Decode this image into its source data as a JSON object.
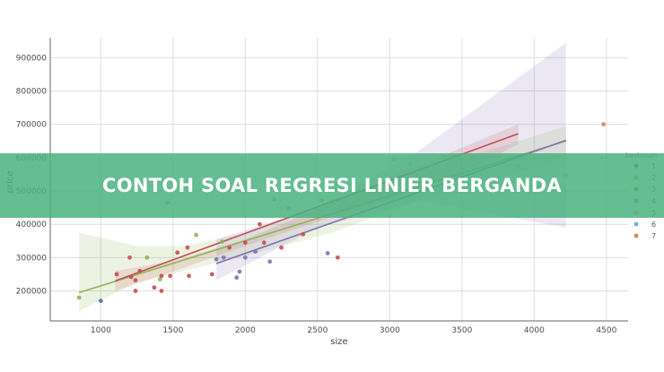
{
  "banner": {
    "title": "CONTOH SOAL REGRESI LINIER BERGANDA"
  },
  "colors": {
    "banner": "#4cb280",
    "grid": "#dddddd",
    "axis": "#666666"
  },
  "chart_data": {
    "type": "scatter",
    "xlabel": "size",
    "ylabel": "price",
    "xlim": [
      650,
      4650
    ],
    "ylim": [
      110000,
      960000
    ],
    "x_ticks": [
      1000,
      1500,
      2000,
      2500,
      3000,
      3500,
      4000,
      4500
    ],
    "y_ticks": [
      200000,
      300000,
      400000,
      500000,
      600000,
      700000,
      800000,
      900000
    ],
    "grid": true,
    "legend": {
      "title": "bedroom",
      "position": "right"
    },
    "series": [
      {
        "name": "1",
        "color": "#4c72b0",
        "points": [
          [
            1000,
            170000
          ]
        ]
      },
      {
        "name": "2",
        "color": "#8fb552",
        "points": [
          [
            850,
            180000
          ],
          [
            1320,
            300000
          ],
          [
            1410,
            235000
          ],
          [
            1660,
            368000
          ],
          [
            1840,
            348000
          ],
          [
            2200,
            475000
          ],
          [
            2300,
            448000
          ],
          [
            2530,
            472000
          ]
        ],
        "fit": [
          [
            850,
            195000
          ],
          [
            4220,
            650000
          ]
        ],
        "band": {
          "upper": [
            [
              850,
              375000
            ],
            [
              1250,
              335000
            ],
            [
              1600,
              335000
            ],
            [
              2000,
              375000
            ],
            [
              2600,
              470000
            ],
            [
              3200,
              560000
            ],
            [
              3900,
              650000
            ],
            [
              4220,
              695000
            ]
          ],
          "lower": [
            [
              850,
              140000
            ],
            [
              1250,
              225000
            ],
            [
              1600,
              262000
            ],
            [
              2000,
              305000
            ],
            [
              2600,
              375000
            ],
            [
              3200,
              470000
            ],
            [
              3900,
              560000
            ],
            [
              4220,
              600000
            ]
          ]
        }
      },
      {
        "name": "3",
        "color": "#c44e52",
        "points": [
          [
            1110,
            250000
          ],
          [
            1200,
            300000
          ],
          [
            1210,
            242000
          ],
          [
            1240,
            232000
          ],
          [
            1240,
            200000
          ],
          [
            1270,
            260000
          ],
          [
            1370,
            210000
          ],
          [
            1420,
            200000
          ],
          [
            1420,
            245000
          ],
          [
            1480,
            245000
          ],
          [
            1530,
            315000
          ],
          [
            1600,
            330000
          ],
          [
            1610,
            245000
          ],
          [
            1770,
            250000
          ],
          [
            1890,
            330000
          ],
          [
            2000,
            345000
          ],
          [
            2100,
            400000
          ],
          [
            2130,
            345000
          ],
          [
            2250,
            330000
          ],
          [
            2400,
            370000
          ],
          [
            2640,
            300000
          ]
        ],
        "fit": [
          [
            1100,
            230000
          ],
          [
            3890,
            672000
          ]
        ],
        "band": {
          "upper": [
            [
              1100,
              260000
            ],
            [
              1500,
              290000
            ],
            [
              2000,
              355000
            ],
            [
              2500,
              445000
            ],
            [
              3000,
              540000
            ],
            [
              3500,
              630000
            ],
            [
              3890,
              700000
            ]
          ],
          "lower": [
            [
              1100,
              200000
            ],
            [
              1500,
              258000
            ],
            [
              2000,
              335000
            ],
            [
              2500,
              408000
            ],
            [
              3000,
              475000
            ],
            [
              3500,
              555000
            ],
            [
              3890,
              640000
            ]
          ]
        }
      },
      {
        "name": "4",
        "color": "#8172b2",
        "points": [
          [
            1800,
            295000
          ],
          [
            1850,
            300000
          ],
          [
            1940,
            240000
          ],
          [
            1960,
            258000
          ],
          [
            2000,
            300000
          ],
          [
            2070,
            318000
          ],
          [
            2170,
            288000
          ],
          [
            2570,
            313000
          ]
        ],
        "fit": [
          [
            1800,
            282000
          ],
          [
            4220,
            652000
          ]
        ],
        "band": {
          "upper": [
            [
              1800,
              355000
            ],
            [
              2500,
              450000
            ],
            [
              3200,
              620000
            ],
            [
              4220,
              945000
            ]
          ],
          "lower": [
            [
              1800,
              232000
            ],
            [
              2500,
              390000
            ],
            [
              3200,
              470000
            ],
            [
              4220,
              390000
            ]
          ]
        }
      },
      {
        "name": "5",
        "color": "#ccb974",
        "points": [
          [
            3030,
            595000
          ],
          [
            3140,
            580000
          ],
          [
            3890,
            575000
          ],
          [
            4220,
            548000
          ]
        ]
      },
      {
        "name": "6",
        "color": "#64b5cd",
        "points": [
          [
            1460,
            465000
          ]
        ]
      },
      {
        "name": "7",
        "color": "#dd8452",
        "points": [
          [
            4480,
            700000
          ]
        ]
      }
    ]
  }
}
